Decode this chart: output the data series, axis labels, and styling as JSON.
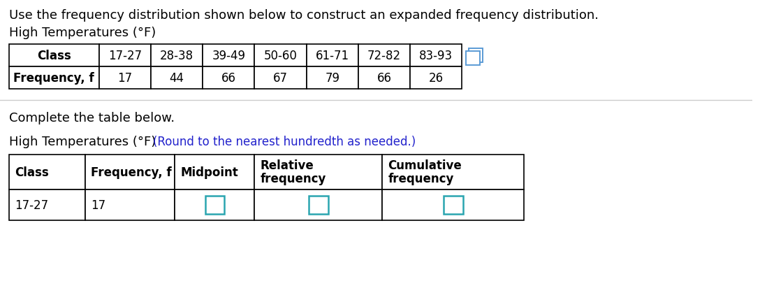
{
  "title_text": "Use the frequency distribution shown below to construct an expanded frequency distribution.",
  "subtitle_text": "High Temperatures (°F)",
  "table1_headers": [
    "Class",
    "17-27",
    "28-38",
    "39-49",
    "50-60",
    "61-71",
    "72-82",
    "83-93"
  ],
  "table1_row_label": "Frequency, f",
  "table1_values": [
    17,
    44,
    66,
    67,
    79,
    66,
    26
  ],
  "complete_text": "Complete the table below.",
  "subtitle2_text": "High Temperatures (°F)",
  "round_text": "(Round to the nearest hundredth as needed.)",
  "table2_col_headers": [
    "Class",
    "Frequency, f",
    "Midpoint",
    "Relative\nfrequency",
    "Cumulative\nfrequency"
  ],
  "table2_row": [
    "17-27",
    "17",
    "",
    "",
    ""
  ],
  "has_input_boxes": [
    false,
    false,
    true,
    true,
    true
  ],
  "input_box_color": "#2aa5b0",
  "bg_color": "#ffffff",
  "text_color": "#000000",
  "blue_text_color": "#2222cc",
  "icon_color": "#5b9bd5",
  "font_size_title": 13,
  "font_size_table": 12
}
